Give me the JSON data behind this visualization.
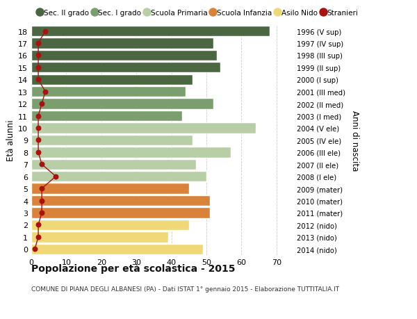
{
  "ages": [
    18,
    17,
    16,
    15,
    14,
    13,
    12,
    11,
    10,
    9,
    8,
    7,
    6,
    5,
    4,
    3,
    2,
    1,
    0
  ],
  "bar_values": [
    68,
    52,
    53,
    54,
    46,
    44,
    52,
    43,
    64,
    46,
    57,
    47,
    50,
    45,
    51,
    51,
    45,
    39,
    49
  ],
  "bar_colors": [
    "#4a6741",
    "#4a6741",
    "#4a6741",
    "#4a6741",
    "#4a6741",
    "#7a9e6e",
    "#7a9e6e",
    "#7a9e6e",
    "#b8cea6",
    "#b8cea6",
    "#b8cea6",
    "#b8cea6",
    "#b8cea6",
    "#d9823a",
    "#d9823a",
    "#d9823a",
    "#f0d878",
    "#f0d878",
    "#f0d878"
  ],
  "right_labels": [
    "1996 (V sup)",
    "1997 (IV sup)",
    "1998 (III sup)",
    "1999 (II sup)",
    "2000 (I sup)",
    "2001 (III med)",
    "2002 (II med)",
    "2003 (I med)",
    "2004 (V ele)",
    "2005 (IV ele)",
    "2006 (III ele)",
    "2007 (II ele)",
    "2008 (I ele)",
    "2009 (mater)",
    "2010 (mater)",
    "2011 (mater)",
    "2012 (nido)",
    "2013 (nido)",
    "2014 (nido)"
  ],
  "stranieri_values": [
    4,
    2,
    2,
    2,
    2,
    4,
    3,
    2,
    2,
    2,
    2,
    3,
    7,
    3,
    3,
    3,
    2,
    2,
    1
  ],
  "legend_labels": [
    "Sec. II grado",
    "Sec. I grado",
    "Scuola Primaria",
    "Scuola Infanzia",
    "Asilo Nido",
    "Stranieri"
  ],
  "legend_colors": [
    "#4a6741",
    "#7a9e6e",
    "#b8cea6",
    "#d9823a",
    "#f0d878",
    "#aa1111"
  ],
  "xlabel_vals": [
    0,
    10,
    20,
    30,
    40,
    50,
    60,
    70
  ],
  "xlim": [
    0,
    75
  ],
  "ylim": [
    -0.5,
    18.5
  ],
  "ylabel_left": "Età alunni",
  "ylabel_right": "Anni di nascita",
  "title_main": "Popolazione per età scolastica - 2015",
  "title_sub": "COMUNE DI PIANA DEGLI ALBANESI (PA) - Dati ISTAT 1° gennaio 2015 - Elaborazione TUTTITALIA.IT",
  "bg_color": "#ffffff",
  "bar_edgecolor": "#ffffff",
  "grid_color": "#cccccc"
}
